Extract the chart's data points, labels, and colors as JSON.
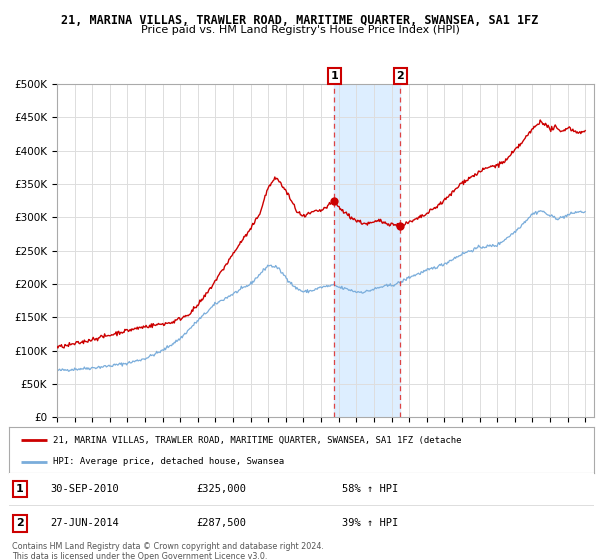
{
  "title1": "21, MARINA VILLAS, TRAWLER ROAD, MARITIME QUARTER, SWANSEA, SA1 1FZ",
  "title2": "Price paid vs. HM Land Registry's House Price Index (HPI)",
  "legend_line1": "21, MARINA VILLAS, TRAWLER ROAD, MARITIME QUARTER, SWANSEA, SA1 1FZ (detache",
  "legend_line2": "HPI: Average price, detached house, Swansea",
  "transaction1_label": "1",
  "transaction1_date": "30-SEP-2010",
  "transaction1_price": "£325,000",
  "transaction1_hpi": "58% ↑ HPI",
  "transaction2_label": "2",
  "transaction2_date": "27-JUN-2014",
  "transaction2_price": "£287,500",
  "transaction2_hpi": "39% ↑ HPI",
  "footer": "Contains HM Land Registry data © Crown copyright and database right 2024.\nThis data is licensed under the Open Government Licence v3.0.",
  "xmin": 1995.0,
  "xmax": 2025.5,
  "ymin": 0,
  "ymax": 500000,
  "yticks": [
    0,
    50000,
    100000,
    150000,
    200000,
    250000,
    300000,
    350000,
    400000,
    450000,
    500000
  ],
  "ytick_labels": [
    "£0",
    "£50K",
    "£100K",
    "£150K",
    "£200K",
    "£250K",
    "£300K",
    "£350K",
    "£400K",
    "£450K",
    "£500K"
  ],
  "transaction1_x": 2010.75,
  "transaction1_y": 325000,
  "transaction2_x": 2014.5,
  "transaction2_y": 287500,
  "red_color": "#cc0000",
  "blue_color": "#7aaddb",
  "highlight_color": "#ddeeff",
  "vline_color": "#dd4444",
  "background_color": "#ffffff",
  "grid_color": "#dddddd",
  "hpi_key_x": [
    1995.0,
    1996.0,
    1997.0,
    1998.0,
    1999.0,
    2000.0,
    2001.0,
    2002.0,
    2003.0,
    2004.0,
    2005.0,
    2006.0,
    2007.0,
    2007.5,
    2008.0,
    2008.5,
    2009.0,
    2009.5,
    2010.0,
    2010.75,
    2011.0,
    2011.5,
    2012.0,
    2012.5,
    2013.0,
    2013.5,
    2014.0,
    2014.5,
    2015.0,
    2016.0,
    2017.0,
    2018.0,
    2019.0,
    2020.0,
    2021.0,
    2022.0,
    2022.5,
    2023.0,
    2023.5,
    2024.0,
    2024.5
  ],
  "hpi_key_y": [
    70000,
    72000,
    74000,
    77000,
    81000,
    88000,
    100000,
    118000,
    145000,
    170000,
    185000,
    200000,
    228000,
    225000,
    210000,
    195000,
    188000,
    190000,
    195000,
    198000,
    195000,
    192000,
    188000,
    188000,
    192000,
    196000,
    198000,
    202000,
    210000,
    220000,
    230000,
    245000,
    255000,
    258000,
    278000,
    305000,
    310000,
    302000,
    298000,
    303000,
    308000
  ],
  "prop_key_x": [
    1995.0,
    1995.5,
    1996.0,
    1996.5,
    1997.0,
    1997.5,
    1998.0,
    1998.5,
    1999.0,
    1999.5,
    2000.0,
    2000.5,
    2001.0,
    2001.5,
    2002.0,
    2002.5,
    2003.0,
    2003.5,
    2004.0,
    2004.5,
    2005.0,
    2005.5,
    2006.0,
    2006.5,
    2007.0,
    2007.3,
    2007.5,
    2007.7,
    2008.0,
    2008.3,
    2008.6,
    2009.0,
    2009.3,
    2009.6,
    2010.0,
    2010.3,
    2010.75,
    2011.0,
    2011.3,
    2011.6,
    2012.0,
    2012.3,
    2012.6,
    2013.0,
    2013.3,
    2013.6,
    2014.0,
    2014.5,
    2015.0,
    2015.5,
    2016.0,
    2016.5,
    2017.0,
    2017.5,
    2018.0,
    2018.5,
    2019.0,
    2019.5,
    2020.0,
    2020.5,
    2021.0,
    2021.5,
    2022.0,
    2022.5,
    2023.0,
    2023.3,
    2023.6,
    2024.0,
    2024.5
  ],
  "prop_key_y": [
    105000,
    107000,
    110000,
    113000,
    117000,
    120000,
    123000,
    127000,
    130000,
    133000,
    136000,
    138000,
    140000,
    142000,
    148000,
    155000,
    168000,
    185000,
    205000,
    225000,
    245000,
    265000,
    282000,
    305000,
    345000,
    355000,
    360000,
    350000,
    340000,
    325000,
    310000,
    300000,
    305000,
    308000,
    310000,
    315000,
    325000,
    315000,
    308000,
    302000,
    295000,
    292000,
    290000,
    292000,
    295000,
    292000,
    290000,
    287500,
    292000,
    298000,
    305000,
    315000,
    325000,
    338000,
    352000,
    360000,
    368000,
    375000,
    378000,
    385000,
    400000,
    415000,
    432000,
    445000,
    432000,
    435000,
    428000,
    435000,
    428000
  ]
}
